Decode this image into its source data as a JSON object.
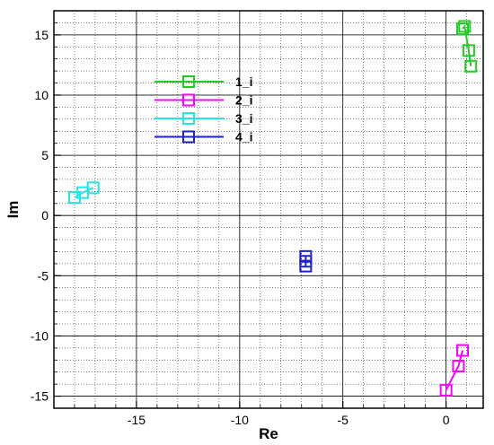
{
  "chart_data": {
    "type": "scatter",
    "xlabel": "Re",
    "ylabel": "Im",
    "xlim": [
      -19,
      1.8
    ],
    "ylim": [
      -16,
      17
    ],
    "x_ticks": [
      -15,
      -10,
      -5,
      0
    ],
    "y_ticks": [
      -15,
      -10,
      -5,
      0,
      5,
      10,
      15
    ],
    "grid": true,
    "legend_position": "upper-left-center",
    "series": [
      {
        "name": "1_i",
        "color": "#22cc22",
        "marker": "square",
        "points": [
          [
            0.8,
            15.5
          ],
          [
            0.9,
            15.7
          ],
          [
            1.1,
            13.7
          ],
          [
            1.2,
            12.4
          ]
        ]
      },
      {
        "name": "2_i",
        "color": "#ff00ff",
        "marker": "square",
        "points": [
          [
            0.0,
            -14.5
          ],
          [
            0.6,
            -12.5
          ],
          [
            0.8,
            -11.2
          ]
        ]
      },
      {
        "name": "3_i",
        "color": "#22e5e5",
        "marker": "square",
        "points": [
          [
            -18.0,
            1.5
          ],
          [
            -17.6,
            1.9
          ],
          [
            -17.1,
            2.3
          ]
        ]
      },
      {
        "name": "4_i",
        "color": "#2222cc",
        "marker": "square",
        "points": [
          [
            -6.8,
            -4.2
          ],
          [
            -6.8,
            -3.8
          ],
          [
            -6.8,
            -3.4
          ]
        ]
      }
    ]
  }
}
